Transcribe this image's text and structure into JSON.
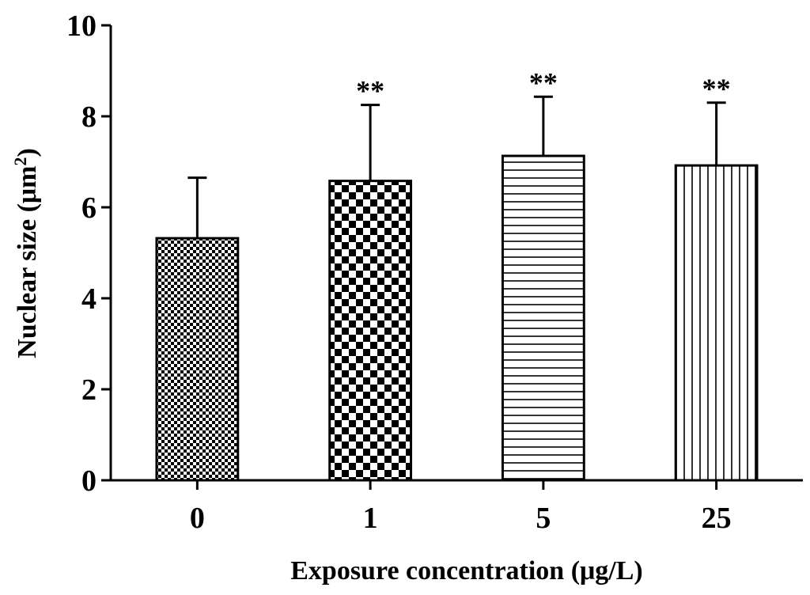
{
  "chart_data": {
    "type": "bar",
    "categories": [
      "0",
      "1",
      "5",
      "25"
    ],
    "values": [
      5.32,
      6.58,
      7.13,
      6.92
    ],
    "error_upper": [
      6.65,
      8.25,
      8.43,
      8.3
    ],
    "significance": [
      "",
      "**",
      "**",
      "**"
    ],
    "patterns": [
      "dense-checker",
      "checker",
      "horizontal-lines",
      "vertical-lines"
    ],
    "xlabel": "Exposure concentration (μg/L)",
    "ylabel_main": "Nuclear size (μm",
    "ylabel_sup": "2",
    "ylabel_end": ")",
    "ylim": [
      0,
      10
    ],
    "yticks": [
      0,
      2,
      4,
      6,
      8,
      10
    ],
    "grid": false,
    "legend": "none",
    "colors": {
      "stroke": "#000000",
      "background": "#ffffff"
    }
  }
}
